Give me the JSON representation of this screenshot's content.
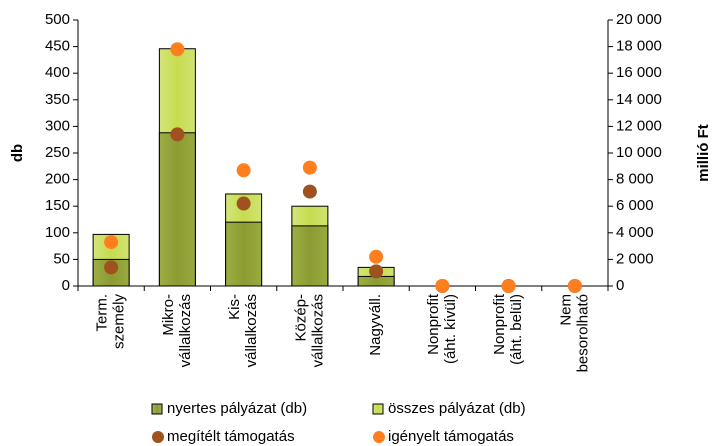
{
  "chart_data": {
    "type": "bar",
    "categories": [
      "Term.\nszemély",
      "Mikro-\nvállalkozás",
      "Kis-\nvállalkozás",
      "Közép-\nvállalkozás",
      "Nagyváll.",
      "Nonprofit\n(áht. kívül)",
      "Nonprofit\n(áht. belül)",
      "Nem\nbesorolható"
    ],
    "series": [
      {
        "name": "összes pályázat (db)",
        "type": "bar",
        "color": "#c6dc4f",
        "values": [
          97,
          446,
          173,
          150,
          35,
          0,
          0,
          0
        ]
      },
      {
        "name": "nyertes pályázat (db)",
        "type": "bar",
        "color": "#8c9c34",
        "values": [
          50,
          288,
          120,
          113,
          18,
          0,
          0,
          0
        ]
      },
      {
        "name": "megítélt támogatás",
        "type": "scatter",
        "axis": "y2",
        "color": "#a0521e",
        "values": [
          1400,
          11400,
          6200,
          7100,
          1100,
          0,
          0,
          0
        ]
      },
      {
        "name": "igényelt támogatás",
        "type": "scatter",
        "axis": "y2",
        "color": "#ff7f1e",
        "values": [
          3300,
          17800,
          8700,
          8900,
          2200,
          0,
          0,
          0
        ]
      }
    ],
    "ylabel": "db",
    "y2label": "millió Ft",
    "ylim": [
      0,
      500
    ],
    "yticks": [
      0,
      50,
      100,
      150,
      200,
      250,
      300,
      350,
      400,
      450,
      500
    ],
    "y2lim": [
      0,
      20000
    ],
    "y2ticks": [
      0,
      {
        "value": 2000,
        "label": "2 000"
      },
      {
        "value": 4000,
        "label": "4 000"
      },
      {
        "value": 6000,
        "label": "6 000"
      },
      {
        "value": 8000,
        "label": "8 000"
      },
      {
        "value": 10000,
        "label": "10 000"
      },
      {
        "value": 12000,
        "label": "12 000"
      },
      {
        "value": 14000,
        "label": "14 000"
      },
      {
        "value": 16000,
        "label": "16 000"
      },
      {
        "value": 18000,
        "label": "18 000"
      },
      {
        "value": 20000,
        "label": "20 000"
      }
    ]
  }
}
